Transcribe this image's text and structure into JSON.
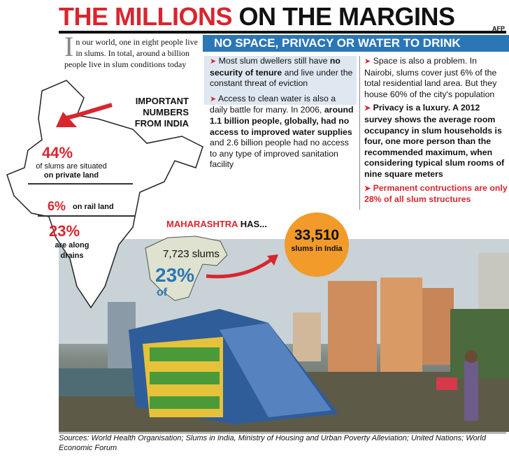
{
  "header": {
    "title_red": "THE MILLIONS",
    "title_black": " ON THE MARGINS",
    "credit": "AFP"
  },
  "intro": {
    "drop_cap": "I",
    "text": "n our world, one in eight people live in slums. In total, around a billion people live in slum conditions today"
  },
  "india": {
    "label": "IMPORTANT NUMBERS FROM INDIA",
    "stat1_pct": "44%",
    "stat1_text_a": "of slums are situated",
    "stat1_text_b": "on private land",
    "stat2_pct": "6%",
    "stat2_text": "on rail land",
    "stat3_pct": "23%",
    "stat3_text": "are along drains"
  },
  "section": {
    "heading": "NO SPACE, PRIVACY OR WATER TO DRINK"
  },
  "col1": {
    "p1_a": "Most slum dwellers still have ",
    "p1_b": "no security of tenure",
    "p1_c": " and live under the constant threat of eviction",
    "p2_a": "Access to clean water is also a daily battle for many. In 2006, ",
    "p2_b": "around 1.1 billion people, globally, had no access to improved water supplies",
    "p2_c": " and 2.6 billion people had no access to any type of improved sanitation facility"
  },
  "col2": {
    "p1": "Space is also a problem. In Nairobi, slums cover just 6% of the total residential land area. But they house 60% of the city's population",
    "p2": "Privacy is a luxury. A 2012 survey shows the average room occupancy in slum households is four, one more person than the recommended maximum, when considering typical slum rooms of nine square meters",
    "p3": "Permanent contructions are only 28% of all slum structures"
  },
  "maharashtra": {
    "label_red": "MAHARASHTRA",
    "label_black": " HAS...",
    "slums": "7,723 slums",
    "pct": "23%",
    "of": "of",
    "total_num": "33,510",
    "total_text": "slums in India"
  },
  "sources": "Sources: World Health Organisation; Slums in India, Ministry of Housing and Urban Poverty Alleviation; United Nations; World Economic Forum",
  "colors": {
    "accent_red": "#d8262e",
    "accent_blue": "#2b76b5",
    "circle_orange": "#f29a2a"
  }
}
